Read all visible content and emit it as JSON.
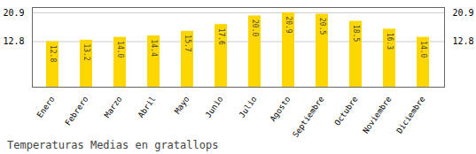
{
  "chart_data": {
    "type": "bar",
    "title": "Temperaturas Medias en gratallops",
    "categories": [
      "Enero",
      "Febrero",
      "Marzo",
      "Abril",
      "Mayo",
      "Junio",
      "Julio",
      "Agosto",
      "Septiembre",
      "Octubre",
      "Noviembre",
      "Diciembre"
    ],
    "values": [
      12.8,
      13.2,
      14.0,
      14.4,
      15.7,
      17.6,
      20.0,
      20.9,
      20.5,
      18.5,
      16.3,
      14.0
    ],
    "value_labels": [
      "12.8",
      "13.2",
      "14.0",
      "14.4",
      "15.7",
      "17.6",
      "20.0",
      "20.9",
      "20.5",
      "18.5",
      "16.3",
      "14.0"
    ],
    "data_labels": true,
    "color": "#FFD700",
    "ylim": [
      0,
      22.363
    ],
    "yticks": [
      12.8,
      20.9
    ],
    "grid": true
  }
}
